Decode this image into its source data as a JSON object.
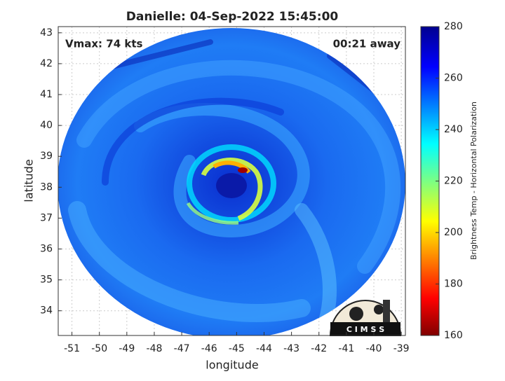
{
  "chart_data": {
    "type": "image",
    "title": "Danielle: 04-Sep-2022 15:45:00",
    "annotations": {
      "intensity": "Vmax: 74 kts",
      "time_offset": "00:21 away",
      "logo": "C I M S S"
    },
    "xlabel": "longitude",
    "ylabel": "latitude",
    "xlim": [
      -51.5,
      -38.85
    ],
    "xticks": [
      -51,
      -50,
      -49,
      -48,
      -47,
      -46,
      -45,
      -44,
      -43,
      -42,
      -41,
      -40,
      -39
    ],
    "ylim": [
      33.2,
      43.2
    ],
    "yticks": [
      34,
      35,
      36,
      37,
      38,
      39,
      40,
      41,
      42,
      43
    ],
    "grid": true,
    "colorbar": {
      "label": "Brightness Temp - Horizontal Polarization",
      "lim": [
        160,
        280
      ],
      "ticks": [
        160,
        180,
        200,
        220,
        240,
        260,
        280
      ]
    }
  }
}
